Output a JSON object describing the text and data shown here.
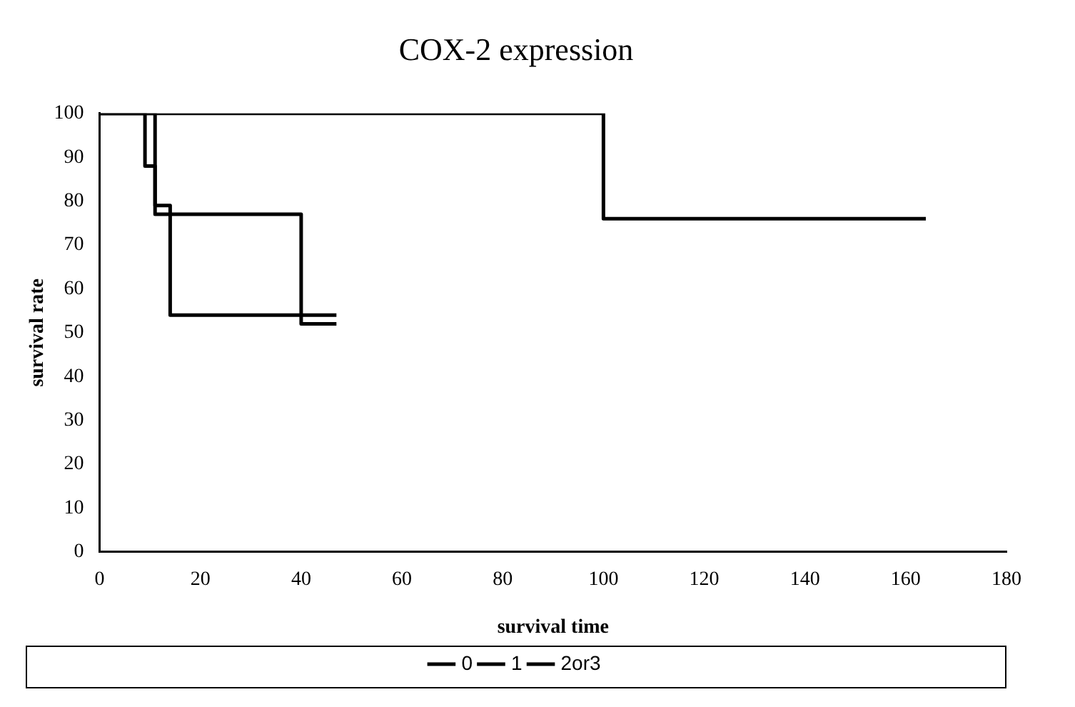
{
  "chart_data": {
    "type": "step",
    "title": "COX-2 expression",
    "xlabel": "survival time",
    "ylabel": "survival rate",
    "xlim": [
      0,
      180
    ],
    "xticks": [
      0,
      20,
      40,
      60,
      80,
      100,
      120,
      140,
      160,
      180
    ],
    "ylim": [
      0,
      100
    ],
    "yticks": [
      0,
      10,
      20,
      30,
      40,
      50,
      60,
      70,
      80,
      90,
      100
    ],
    "grid": false,
    "legend": "bottom",
    "marker": "none",
    "line_style": "solid",
    "series": [
      {
        "name": "0",
        "color": "#000000",
        "x": [
          0,
          9,
          11,
          40,
          47
        ],
        "values": [
          100,
          88,
          77,
          52,
          52
        ]
      },
      {
        "name": "1",
        "color": "#000000",
        "x": [
          0,
          11,
          14,
          47
        ],
        "values": [
          100,
          79,
          54,
          54
        ]
      },
      {
        "name": "2or3",
        "color": "#000000",
        "x": [
          0,
          100,
          164
        ],
        "values": [
          100,
          76,
          76
        ]
      }
    ]
  }
}
